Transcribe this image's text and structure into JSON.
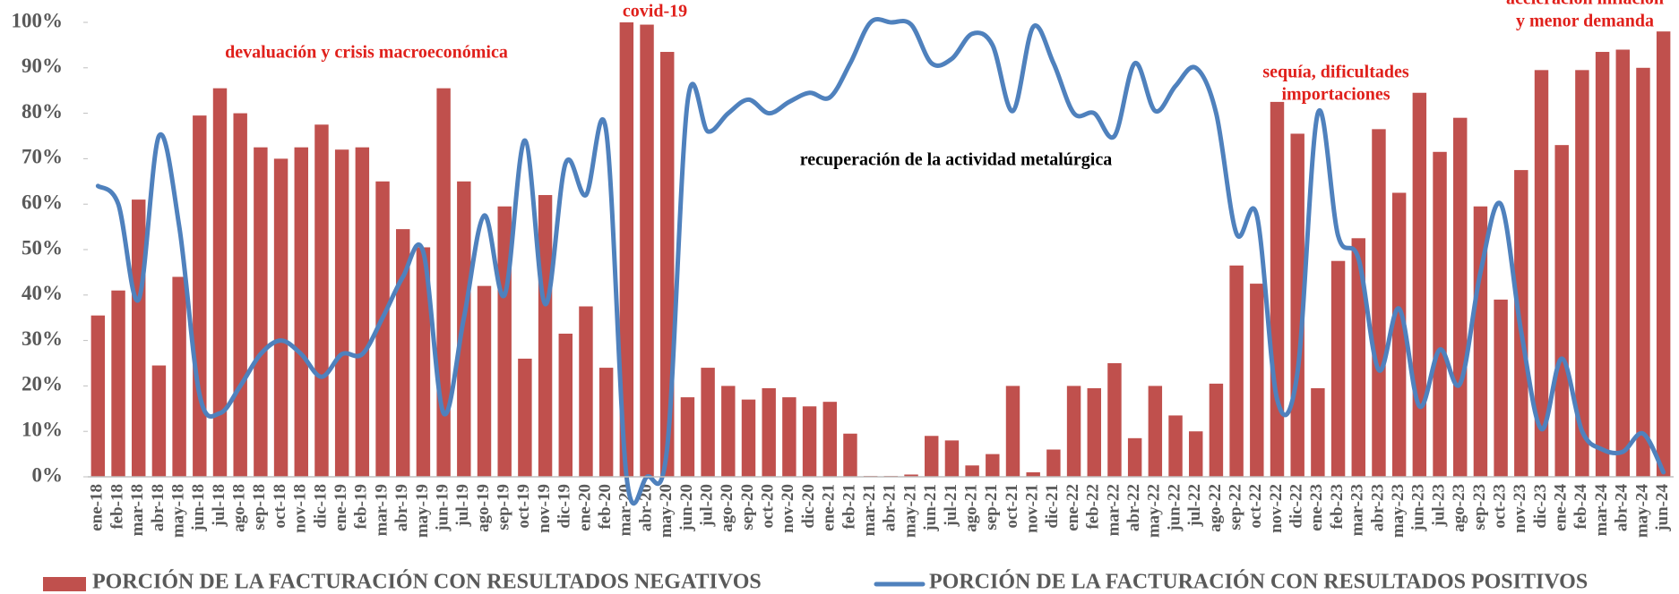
{
  "chart_data": {
    "type": "bar-line",
    "categories": [
      "ene-18",
      "feb-18",
      "mar-18",
      "abr-18",
      "may-18",
      "jun-18",
      "jul-18",
      "ago-18",
      "sep-18",
      "oct-18",
      "nov-18",
      "dic-18",
      "ene-19",
      "feb-19",
      "mar-19",
      "abr-19",
      "may-19",
      "jun-19",
      "jul-19",
      "ago-19",
      "sep-19",
      "oct-19",
      "nov-19",
      "dic-19",
      "ene-20",
      "feb-20",
      "mar-20",
      "abr-20",
      "may-20",
      "jun-20",
      "jul-20",
      "ago-20",
      "sep-20",
      "oct-20",
      "nov-20",
      "dic-20",
      "ene-21",
      "feb-21",
      "mar-21",
      "abr-21",
      "may-21",
      "jun-21",
      "jul-21",
      "ago-21",
      "sep-21",
      "oct-21",
      "nov-21",
      "dic-21",
      "ene-22",
      "feb-22",
      "mar-22",
      "abr-22",
      "may-22",
      "jun-22",
      "jul-22",
      "ago-22",
      "sep-22",
      "oct-22",
      "nov-22",
      "dic-22",
      "ene-23",
      "feb-23",
      "mar-23",
      "abr-23",
      "may-23",
      "jun-23",
      "jul-23",
      "ago-23",
      "sep-23",
      "oct-23",
      "nov-23",
      "dic-23",
      "ene-24",
      "feb-24",
      "mar-24",
      "abr-24",
      "may-24",
      "jun-24"
    ],
    "series": [
      {
        "name": "PORCIÓN DE LA FACTURACIÓN CON RESULTADOS NEGATIVOS",
        "type": "bar",
        "color": "#c0504d",
        "values": [
          35.5,
          41,
          61,
          24.5,
          44,
          79.5,
          85.5,
          80,
          72.5,
          70,
          72.5,
          77.5,
          72,
          72.5,
          65,
          54.5,
          50.5,
          85.5,
          65,
          42,
          59.5,
          26,
          62,
          31.5,
          37.5,
          24,
          100,
          99.5,
          93.5,
          17.5,
          24,
          20,
          17,
          19.5,
          17.5,
          15.5,
          16.5,
          9.5,
          0.2,
          0.2,
          0.5,
          9,
          8,
          2.5,
          5,
          20,
          1,
          6,
          20,
          19.5,
          25,
          8.5,
          20,
          13.5,
          10,
          20.5,
          46.5,
          42.5,
          82.5,
          75.5,
          19.5,
          47.5,
          52.5,
          76.5,
          62.5,
          84.5,
          71.5,
          79,
          59.5,
          39,
          67.5,
          89.5,
          73,
          89.5,
          93.5,
          94,
          90,
          98
        ]
      },
      {
        "name": "PORCIÓN DE LA FACTURACIÓN CON RESULTADOS POSITIVOS",
        "type": "line",
        "color": "#4f81bd",
        "smooth": true,
        "values": [
          64,
          60,
          39,
          75,
          55,
          18,
          14,
          20,
          27,
          30,
          27,
          22,
          27,
          27,
          35,
          44,
          49.5,
          14,
          35,
          57.5,
          40,
          74,
          38,
          69,
          62,
          76,
          0,
          0,
          6.5,
          82.5,
          76,
          80,
          83,
          80,
          82.5,
          84.5,
          83.5,
          91,
          100,
          100,
          99.5,
          91,
          92,
          97.5,
          95,
          80.5,
          99,
          91,
          80,
          80,
          75,
          91,
          80.5,
          86,
          90,
          80,
          53.5,
          57.5,
          17,
          23,
          80,
          53,
          48,
          23.5,
          37,
          15.5,
          28,
          20.5,
          45,
          60,
          32,
          10.5,
          26,
          10,
          6,
          5.5,
          9.5,
          1
        ]
      }
    ],
    "ylim": [
      0,
      100
    ],
    "yticks": [
      {
        "value": 0,
        "label": "0%"
      },
      {
        "value": 10,
        "label": "10%"
      },
      {
        "value": 20,
        "label": "20%"
      },
      {
        "value": 30,
        "label": "30%"
      },
      {
        "value": 40,
        "label": "40%"
      },
      {
        "value": 50,
        "label": "50%"
      },
      {
        "value": 60,
        "label": "60%"
      },
      {
        "value": 70,
        "label": "70%"
      },
      {
        "value": 80,
        "label": "80%"
      },
      {
        "value": 90,
        "label": "90%"
      },
      {
        "value": 100,
        "label": "100%"
      }
    ],
    "grid": false,
    "legend": "bottom",
    "annotations": [
      {
        "lines": [
          "devaluación y crisis macroeconómica"
        ],
        "color": "#e0201b"
      },
      {
        "lines": [
          "covid-19"
        ],
        "color": "#e0201b"
      },
      {
        "lines": [
          "recuperación de la actividad metalúrgica"
        ],
        "color": "#000000"
      },
      {
        "lines": [
          "sequía, dificultades",
          "importaciones"
        ],
        "color": "#e0201b"
      },
      {
        "lines": [
          "aceleración inflación",
          "y menor demanda"
        ],
        "color": "#e0201b"
      }
    ]
  }
}
